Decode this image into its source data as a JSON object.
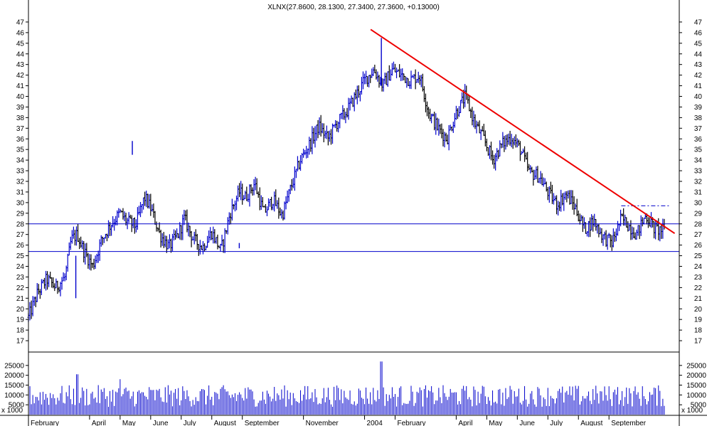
{
  "chart_data": {
    "type": "ohlc",
    "title": "XLNX(27.8600, 28.1300, 27.3400, 27.3600, +0.13000)",
    "ylim": [
      16,
      48
    ],
    "y_ticks": [
      17,
      18,
      19,
      20,
      21,
      22,
      23,
      24,
      25,
      26,
      27,
      28,
      29,
      30,
      31,
      32,
      33,
      34,
      35,
      36,
      37,
      38,
      39,
      40,
      41,
      42,
      43,
      44,
      45,
      46,
      47
    ],
    "months": [
      {
        "label": "February"
      },
      {
        "label": "April"
      },
      {
        "label": "May"
      },
      {
        "label": "June"
      },
      {
        "label": "July"
      },
      {
        "label": "August"
      },
      {
        "label": "September"
      },
      {
        "label": "November"
      },
      {
        "label": "2004"
      },
      {
        "label": "February"
      },
      {
        "label": "April"
      },
      {
        "label": "May"
      },
      {
        "label": "June"
      },
      {
        "label": "July"
      },
      {
        "label": "August"
      },
      {
        "label": "September"
      }
    ],
    "month_positions": [
      0,
      2.0,
      3.0,
      4.0,
      5.0,
      6.0,
      7.0,
      9.0,
      11.0,
      12.0,
      14.0,
      15.0,
      16.0,
      17.0,
      18.0,
      19.0
    ],
    "price_path": [
      {
        "m": 0.0,
        "p": 19.2
      },
      {
        "m": 0.3,
        "p": 21.5
      },
      {
        "m": 0.6,
        "p": 22.8
      },
      {
        "m": 0.9,
        "p": 22.0
      },
      {
        "m": 1.2,
        "p": 23.0
      },
      {
        "m": 1.4,
        "p": 26.5
      },
      {
        "m": 1.6,
        "p": 27.0
      },
      {
        "m": 1.8,
        "p": 25.5
      },
      {
        "m": 2.1,
        "p": 24.0
      },
      {
        "m": 2.4,
        "p": 26.5
      },
      {
        "m": 2.7,
        "p": 28.0
      },
      {
        "m": 3.0,
        "p": 29.0
      },
      {
        "m": 3.2,
        "p": 28.3
      },
      {
        "m": 3.5,
        "p": 27.8
      },
      {
        "m": 3.8,
        "p": 30.5
      },
      {
        "m": 4.0,
        "p": 29.5
      },
      {
        "m": 4.3,
        "p": 27.0
      },
      {
        "m": 4.6,
        "p": 25.8
      },
      {
        "m": 4.9,
        "p": 27.0
      },
      {
        "m": 5.1,
        "p": 28.5
      },
      {
        "m": 5.4,
        "p": 26.5
      },
      {
        "m": 5.7,
        "p": 25.8
      },
      {
        "m": 6.0,
        "p": 27.2
      },
      {
        "m": 6.3,
        "p": 25.5
      },
      {
        "m": 6.6,
        "p": 29.0
      },
      {
        "m": 6.9,
        "p": 31.0
      },
      {
        "m": 7.1,
        "p": 30.5
      },
      {
        "m": 7.4,
        "p": 31.8
      },
      {
        "m": 7.7,
        "p": 29.0
      },
      {
        "m": 8.0,
        "p": 30.3
      },
      {
        "m": 8.3,
        "p": 28.8
      },
      {
        "m": 8.6,
        "p": 31.5
      },
      {
        "m": 8.9,
        "p": 34.0
      },
      {
        "m": 9.2,
        "p": 35.5
      },
      {
        "m": 9.5,
        "p": 37.2
      },
      {
        "m": 9.8,
        "p": 36.0
      },
      {
        "m": 10.1,
        "p": 37.5
      },
      {
        "m": 10.4,
        "p": 38.5
      },
      {
        "m": 10.7,
        "p": 40.0
      },
      {
        "m": 11.0,
        "p": 41.5
      },
      {
        "m": 11.3,
        "p": 42.5
      },
      {
        "m": 11.6,
        "p": 41.0
      },
      {
        "m": 11.9,
        "p": 42.5
      },
      {
        "m": 12.2,
        "p": 42.0
      },
      {
        "m": 12.5,
        "p": 41.5
      },
      {
        "m": 12.8,
        "p": 42.0
      },
      {
        "m": 13.1,
        "p": 38.5
      },
      {
        "m": 13.4,
        "p": 37.0
      },
      {
        "m": 13.7,
        "p": 36.0
      },
      {
        "m": 14.0,
        "p": 38.5
      },
      {
        "m": 14.3,
        "p": 40.0
      },
      {
        "m": 14.6,
        "p": 37.5
      },
      {
        "m": 14.9,
        "p": 36.0
      },
      {
        "m": 15.2,
        "p": 34.0
      },
      {
        "m": 15.5,
        "p": 35.5
      },
      {
        "m": 15.8,
        "p": 36.2
      },
      {
        "m": 16.1,
        "p": 35.0
      },
      {
        "m": 16.4,
        "p": 32.8
      },
      {
        "m": 16.7,
        "p": 32.5
      },
      {
        "m": 17.0,
        "p": 31.0
      },
      {
        "m": 17.3,
        "p": 29.8
      },
      {
        "m": 17.6,
        "p": 30.8
      },
      {
        "m": 17.9,
        "p": 29.5
      },
      {
        "m": 18.2,
        "p": 27.5
      },
      {
        "m": 18.5,
        "p": 28.3
      },
      {
        "m": 18.8,
        "p": 26.8
      },
      {
        "m": 19.1,
        "p": 26.2
      },
      {
        "m": 19.4,
        "p": 28.5
      },
      {
        "m": 19.6,
        "p": 28.0
      },
      {
        "m": 19.9,
        "p": 27.0
      },
      {
        "m": 20.2,
        "p": 28.8
      },
      {
        "m": 20.5,
        "p": 27.5
      },
      {
        "m": 20.8,
        "p": 27.4
      }
    ],
    "spikes": [
      {
        "m": 3.4,
        "high": 35.8,
        "low": 34.5
      },
      {
        "m": 6.9,
        "high": 26.2,
        "low": 25.7
      },
      {
        "m": 1.55,
        "high": 25.0,
        "low": 21.0
      },
      {
        "m": 11.55,
        "high": 45.5,
        "low": 41.0
      }
    ],
    "horizontal_lines": [
      28.0,
      25.4
    ],
    "dashed_level": {
      "value": 29.7,
      "from_m": 19.4,
      "to_m": 21.0
    },
    "trendline": {
      "from": {
        "m": 11.2,
        "p": 46.3
      },
      "to": {
        "m": 21.15,
        "p": 27.1
      }
    },
    "volume": {
      "ylim": [
        0,
        30000
      ],
      "y_ticks": [
        5000,
        10000,
        15000,
        20000,
        25000
      ],
      "unit_label": "x 1000",
      "typical": 10000,
      "spikes": [
        {
          "m": 1.6,
          "v": 20500
        },
        {
          "m": 11.55,
          "v": 27000
        },
        {
          "m": 3.0,
          "v": 18000
        },
        {
          "m": 19.3,
          "v": 14000
        }
      ]
    },
    "colors": {
      "up_bar": "#0000cc",
      "down_bar": "#000000",
      "trendline": "#ee0000",
      "level_line": "#0000cc",
      "volume": "#0000cc"
    }
  }
}
